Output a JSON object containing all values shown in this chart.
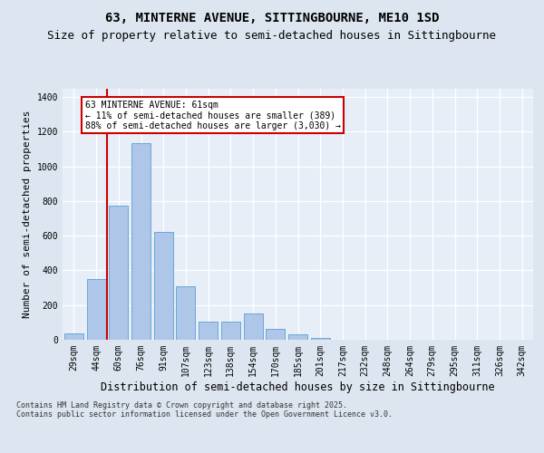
{
  "title": "63, MINTERNE AVENUE, SITTINGBOURNE, ME10 1SD",
  "subtitle": "Size of property relative to semi-detached houses in Sittingbourne",
  "xlabel": "Distribution of semi-detached houses by size in Sittingbourne",
  "ylabel": "Number of semi-detached properties",
  "categories": [
    "29sqm",
    "44sqm",
    "60sqm",
    "76sqm",
    "91sqm",
    "107sqm",
    "123sqm",
    "138sqm",
    "154sqm",
    "170sqm",
    "185sqm",
    "201sqm",
    "217sqm",
    "232sqm",
    "248sqm",
    "264sqm",
    "279sqm",
    "295sqm",
    "311sqm",
    "326sqm",
    "342sqm"
  ],
  "values": [
    35,
    350,
    775,
    1135,
    620,
    310,
    107,
    107,
    150,
    65,
    30,
    8,
    0,
    0,
    0,
    0,
    0,
    0,
    0,
    0,
    0
  ],
  "bar_color": "#aec6e8",
  "bar_edge_color": "#5a9fd4",
  "vline_color": "#cc0000",
  "annotation_text": "63 MINTERNE AVENUE: 61sqm\n← 11% of semi-detached houses are smaller (389)\n88% of semi-detached houses are larger (3,030) →",
  "annotation_box_color": "#ffffff",
  "annotation_box_edge": "#cc0000",
  "ylim": [
    0,
    1450
  ],
  "yticks": [
    0,
    200,
    400,
    600,
    800,
    1000,
    1200,
    1400
  ],
  "footer": "Contains HM Land Registry data © Crown copyright and database right 2025.\nContains public sector information licensed under the Open Government Licence v3.0.",
  "bg_color": "#dde6f0",
  "plot_bg_color": "#e8eef8",
  "grid_color": "#ffffff",
  "title_fontsize": 10,
  "subtitle_fontsize": 9,
  "tick_fontsize": 7,
  "ylabel_fontsize": 8,
  "xlabel_fontsize": 8.5,
  "footer_fontsize": 6,
  "annot_fontsize": 7
}
